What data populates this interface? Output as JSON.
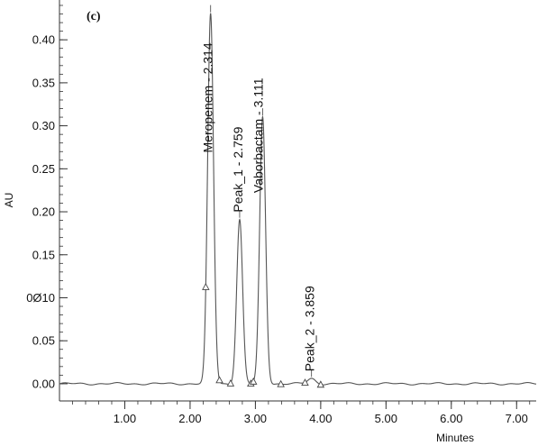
{
  "chart_data": {
    "type": "line",
    "panel_label": "(c)",
    "xlabel": "Minutes",
    "ylabel": "AU",
    "xlim": [
      0.0,
      7.3
    ],
    "ylim": [
      -0.02,
      0.44
    ],
    "x_ticks": [
      {
        "value": 1.0,
        "label": "1.00"
      },
      {
        "value": 2.0,
        "label": "2.00"
      },
      {
        "value": 3.0,
        "label": "3.00"
      },
      {
        "value": 4.0,
        "label": "4.00"
      },
      {
        "value": 5.0,
        "label": "5.00"
      },
      {
        "value": 6.0,
        "label": "6.00"
      },
      {
        "value": 7.0,
        "label": "7.00"
      }
    ],
    "x_minor_step": 0.2,
    "y_ticks": [
      {
        "value": 0.0,
        "label": "0.00"
      },
      {
        "value": 0.05,
        "label": "0.05"
      },
      {
        "value": 0.1,
        "label": "0Ø10"
      },
      {
        "value": 0.15,
        "label": "0.15"
      },
      {
        "value": 0.2,
        "label": "0.20"
      },
      {
        "value": 0.25,
        "label": "0.25"
      },
      {
        "value": 0.3,
        "label": "0.30"
      },
      {
        "value": 0.35,
        "label": "0.35"
      },
      {
        "value": 0.4,
        "label": "0.40"
      }
    ],
    "y_minor_step": 0.01,
    "baseline": 0.0,
    "peaks": [
      {
        "label": "Meropenem - 2.314",
        "rt": 2.314,
        "height": 0.43,
        "width": 0.045,
        "start": 2.24,
        "end": 2.45
      },
      {
        "label": "Peak_1 - 2.759",
        "rt": 2.759,
        "height": 0.191,
        "width": 0.045,
        "start": 2.62,
        "end": 2.93
      },
      {
        "label": "Vaborbactam - 3.111",
        "rt": 3.111,
        "height": 0.31,
        "width": 0.045,
        "start": 2.97,
        "end": 3.39
      },
      {
        "label": "Peak_2 - 3.859",
        "rt": 3.859,
        "height": 0.006,
        "width": 0.06,
        "start": 3.76,
        "end": 4.0
      }
    ],
    "grid": false,
    "line_color": "#555555"
  }
}
